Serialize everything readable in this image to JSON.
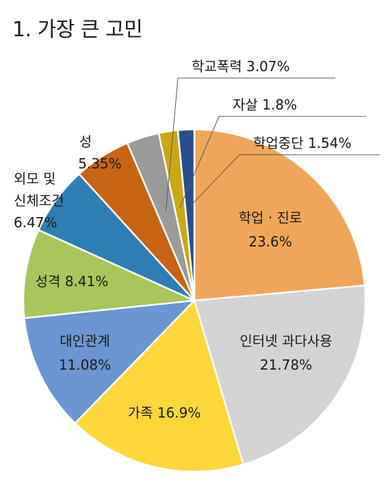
{
  "title": "1. 가장 큰 고민",
  "chart_data": {
    "type": "pie",
    "title": "1. 가장 큰 고민",
    "slices": [
      {
        "label": "학업 · 진로",
        "value_text": "23.6%",
        "value": 23.6,
        "color": "#F0A65A"
      },
      {
        "label": "인터넷 과다사용",
        "value_text": "21.78%",
        "value": 21.78,
        "color": "#D3D3D3"
      },
      {
        "label": "가족",
        "value_text": "16.9%",
        "value": 16.9,
        "color": "#FBD73A"
      },
      {
        "label": "대인관계",
        "value_text": "11.08%",
        "value": 11.08,
        "color": "#6A96D1"
      },
      {
        "label": "성격",
        "value_text": "8.41%",
        "value": 8.41,
        "color": "#A8C65B"
      },
      {
        "label": "외모 및 신체조건",
        "value_text": "6.47%",
        "value": 6.47,
        "color": "#2E7DB3"
      },
      {
        "label": "성",
        "value_text": "5.35%",
        "value": 5.35,
        "color": "#C86414"
      },
      {
        "label": "학교폭력",
        "value_text": "3.07%",
        "value": 3.07,
        "color": "#9A9A9A"
      },
      {
        "label": "자살",
        "value_text": "1.8%",
        "value": 1.8,
        "color": "#C9A814"
      },
      {
        "label": "학업중단",
        "value_text": "1.54%",
        "value": 1.54,
        "color": "#2A4E8C"
      }
    ]
  }
}
